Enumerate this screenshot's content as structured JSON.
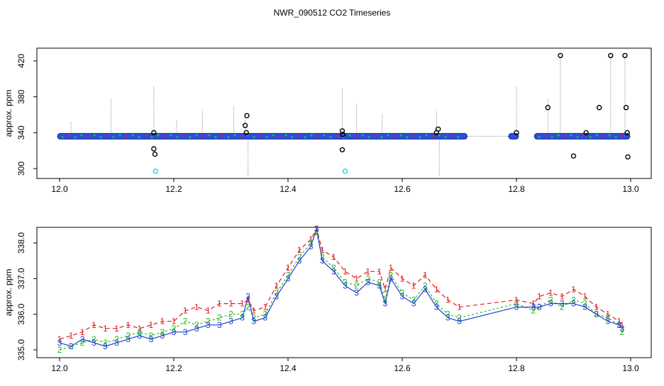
{
  "title": "NWR_090512  CO2 Timeseries",
  "colors": {
    "series1": "#e41a1c",
    "series2": "#22bb22",
    "series3": "#1f3fd8",
    "blue_fill": "#2a4fe0",
    "outlier": "#000000",
    "flagged": "#33dddd",
    "stem": "#9a9a9a"
  },
  "chart_data": [
    {
      "type": "scatter",
      "panel": "top",
      "title": "NWR_090512  CO2 Timeseries",
      "xlabel": "",
      "ylabel": "approx. ppm",
      "xlim": [
        12.0,
        13.0
      ],
      "ylim": [
        295,
        428
      ],
      "xticks": [
        "12.0",
        "12.2",
        "12.4",
        "12.6",
        "12.8",
        "13.0"
      ],
      "yticks": [
        "300",
        "340",
        "380",
        "420"
      ],
      "segments": [
        [
          12.0,
          12.71
        ],
        [
          12.79,
          12.8
        ],
        [
          12.835,
          12.995
        ]
      ],
      "baseline": 336,
      "stems": [
        {
          "x": 12.02,
          "y": 352
        },
        {
          "x": 12.09,
          "y": 378
        },
        {
          "x": 12.165,
          "y": 393
        },
        {
          "x": 12.205,
          "y": 355
        },
        {
          "x": 12.25,
          "y": 365
        },
        {
          "x": 12.305,
          "y": 370
        },
        {
          "x": 12.325,
          "y": 360
        },
        {
          "x": 12.33,
          "y": 292
        },
        {
          "x": 12.495,
          "y": 389
        },
        {
          "x": 12.52,
          "y": 372
        },
        {
          "x": 12.565,
          "y": 362
        },
        {
          "x": 12.66,
          "y": 365
        },
        {
          "x": 12.665,
          "y": 292
        },
        {
          "x": 12.8,
          "y": 393
        },
        {
          "x": 12.855,
          "y": 378
        },
        {
          "x": 12.877,
          "y": 427
        },
        {
          "x": 12.965,
          "y": 427
        },
        {
          "x": 12.99,
          "y": 427
        }
      ],
      "outliers": [
        {
          "x": 12.165,
          "y": 340
        },
        {
          "x": 12.165,
          "y": 322
        },
        {
          "x": 12.167,
          "y": 316
        },
        {
          "x": 12.328,
          "y": 359
        },
        {
          "x": 12.325,
          "y": 348
        },
        {
          "x": 12.327,
          "y": 340
        },
        {
          "x": 12.495,
          "y": 342
        },
        {
          "x": 12.496,
          "y": 338
        },
        {
          "x": 12.495,
          "y": 321
        },
        {
          "x": 12.66,
          "y": 340
        },
        {
          "x": 12.663,
          "y": 344
        },
        {
          "x": 12.8,
          "y": 340
        },
        {
          "x": 12.855,
          "y": 368
        },
        {
          "x": 12.877,
          "y": 426
        },
        {
          "x": 12.9,
          "y": 314
        },
        {
          "x": 12.922,
          "y": 340
        },
        {
          "x": 12.945,
          "y": 368
        },
        {
          "x": 12.965,
          "y": 426
        },
        {
          "x": 12.99,
          "y": 426
        },
        {
          "x": 12.992,
          "y": 368
        },
        {
          "x": 12.994,
          "y": 340
        },
        {
          "x": 12.995,
          "y": 313
        }
      ],
      "flagged": [
        {
          "x": 12.168,
          "y": 297
        },
        {
          "x": 12.5,
          "y": 297
        }
      ]
    },
    {
      "type": "line",
      "panel": "bottom",
      "xlabel": "",
      "ylabel": "approx. ppm",
      "xlim": [
        12.0,
        13.0
      ],
      "ylim": [
        334.85,
        338.4
      ],
      "xticks": [
        "12.0",
        "12.2",
        "12.4",
        "12.6",
        "12.8",
        "13.0"
      ],
      "yticks": [
        "335.0",
        "336.0",
        "337.0",
        "338.0"
      ],
      "x": [
        12.0,
        12.02,
        12.04,
        12.06,
        12.08,
        12.1,
        12.12,
        12.14,
        12.16,
        12.18,
        12.2,
        12.22,
        12.24,
        12.26,
        12.28,
        12.3,
        12.32,
        12.33,
        12.34,
        12.36,
        12.38,
        12.4,
        12.42,
        12.44,
        12.45,
        12.46,
        12.48,
        12.5,
        12.52,
        12.54,
        12.56,
        12.57,
        12.58,
        12.6,
        12.62,
        12.64,
        12.66,
        12.68,
        12.7,
        12.8,
        12.83,
        12.84,
        12.86,
        12.88,
        12.9,
        12.92,
        12.94,
        12.96,
        12.98,
        12.985
      ],
      "series": [
        {
          "name": "1",
          "symbol": "1",
          "values": [
            335.3,
            335.4,
            335.5,
            335.7,
            335.6,
            335.6,
            335.7,
            335.6,
            335.7,
            335.8,
            335.8,
            336.1,
            336.2,
            336.1,
            336.3,
            336.3,
            336.3,
            336.4,
            336.1,
            336.2,
            336.8,
            337.3,
            337.8,
            338.1,
            338.4,
            337.8,
            337.6,
            337.2,
            337.0,
            337.2,
            337.2,
            336.7,
            337.3,
            337.0,
            336.8,
            337.1,
            336.7,
            336.4,
            336.2,
            336.4,
            336.3,
            336.5,
            336.6,
            336.5,
            336.7,
            336.5,
            336.2,
            336.0,
            335.8,
            335.7
          ]
        },
        {
          "name": "2",
          "symbol": "2",
          "values": [
            335.0,
            335.1,
            335.2,
            335.3,
            335.2,
            335.3,
            335.4,
            335.5,
            335.4,
            335.5,
            335.6,
            335.8,
            335.7,
            335.8,
            335.9,
            336.0,
            336.0,
            336.2,
            335.9,
            336.0,
            336.6,
            337.1,
            337.6,
            338.0,
            338.3,
            337.6,
            337.3,
            336.9,
            336.8,
            337.0,
            336.9,
            336.4,
            337.1,
            336.6,
            336.4,
            336.8,
            336.3,
            336.0,
            335.9,
            336.3,
            336.1,
            336.2,
            336.4,
            336.2,
            336.4,
            336.3,
            336.0,
            335.9,
            335.7,
            335.5
          ]
        },
        {
          "name": "3",
          "symbol": "3",
          "values": [
            335.2,
            335.1,
            335.3,
            335.2,
            335.1,
            335.2,
            335.3,
            335.4,
            335.3,
            335.4,
            335.5,
            335.5,
            335.6,
            335.7,
            335.7,
            335.8,
            335.9,
            336.5,
            335.8,
            335.9,
            336.5,
            337.0,
            337.5,
            337.9,
            338.4,
            337.5,
            337.2,
            336.8,
            336.6,
            336.9,
            336.8,
            336.3,
            337.0,
            336.5,
            336.3,
            336.7,
            336.2,
            335.9,
            335.8,
            336.2,
            336.2,
            336.2,
            336.3,
            336.3,
            336.3,
            336.2,
            336.0,
            335.8,
            335.7,
            335.6
          ]
        }
      ]
    }
  ]
}
